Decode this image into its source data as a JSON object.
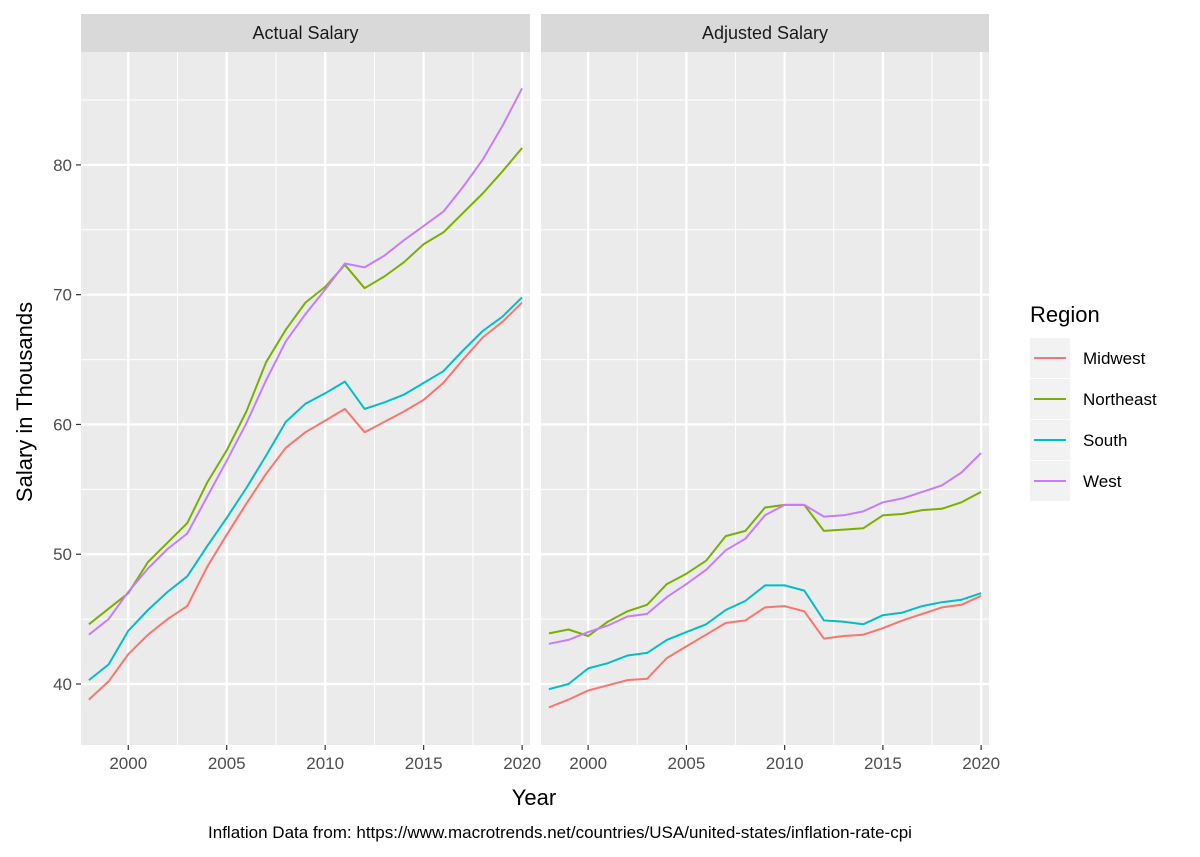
{
  "chart_data": {
    "type": "line",
    "xlabel": "Year",
    "ylabel": "Salary in Thousands",
    "caption": "Inflation Data from: https://www.macrotrends.net/countries/USA/united-states/inflation-rate-cpi",
    "xlim": [
      1997.6,
      2020.4
    ],
    "ylim": [
      35.3,
      88.7
    ],
    "x_ticks": [
      2000,
      2005,
      2010,
      2015,
      2020
    ],
    "y_ticks": [
      40,
      50,
      60,
      70,
      80
    ],
    "grid": true,
    "legend": {
      "title": "Region",
      "placement": "right",
      "entries": [
        {
          "name": "Midwest",
          "color": "#F8766D"
        },
        {
          "name": "Northeast",
          "color": "#7CAE00"
        },
        {
          "name": "South",
          "color": "#00BFC4"
        },
        {
          "name": "West",
          "color": "#C77CFF"
        }
      ]
    },
    "x": [
      1998,
      1999,
      2000,
      2001,
      2002,
      2003,
      2004,
      2005,
      2006,
      2007,
      2008,
      2009,
      2010,
      2011,
      2012,
      2013,
      2014,
      2015,
      2016,
      2017,
      2018,
      2019,
      2020
    ],
    "panels": [
      {
        "title": "Actual Salary",
        "series": [
          {
            "name": "Midwest",
            "values": [
              38.8,
              40.2,
              42.3,
              43.8,
              45.0,
              46.0,
              49.0,
              51.5,
              53.9,
              56.2,
              58.2,
              59.4,
              60.3,
              61.2,
              59.4,
              60.2,
              61.0,
              61.9,
              63.2,
              65.0,
              66.7,
              67.9,
              69.4
            ]
          },
          {
            "name": "Northeast",
            "values": [
              44.6,
              45.8,
              47.0,
              49.4,
              50.9,
              52.4,
              55.5,
              58.0,
              61.0,
              64.8,
              67.3,
              69.4,
              70.6,
              72.3,
              70.5,
              71.4,
              72.5,
              73.9,
              74.8,
              76.3,
              77.8,
              79.5,
              81.3
            ]
          },
          {
            "name": "South",
            "values": [
              40.3,
              41.5,
              44.1,
              45.7,
              47.1,
              48.3,
              50.6,
              52.8,
              55.1,
              57.6,
              60.2,
              61.6,
              62.4,
              63.3,
              61.2,
              61.7,
              62.3,
              63.2,
              64.1,
              65.7,
              67.2,
              68.3,
              69.8
            ]
          },
          {
            "name": "West",
            "values": [
              43.8,
              45.0,
              47.1,
              48.9,
              50.4,
              51.6,
              54.4,
              57.2,
              60.1,
              63.4,
              66.4,
              68.5,
              70.4,
              72.4,
              72.1,
              73.0,
              74.2,
              75.3,
              76.4,
              78.3,
              80.4,
              83.0,
              85.9
            ]
          }
        ]
      },
      {
        "title": "Adjusted Salary",
        "series": [
          {
            "name": "Midwest",
            "values": [
              38.2,
              38.8,
              39.5,
              39.9,
              40.3,
              40.4,
              42.0,
              42.9,
              43.8,
              44.7,
              44.9,
              45.9,
              46.0,
              45.6,
              43.5,
              43.7,
              43.8,
              44.3,
              44.9,
              45.4,
              45.9,
              46.1,
              46.8
            ]
          },
          {
            "name": "Northeast",
            "values": [
              43.9,
              44.2,
              43.7,
              44.8,
              45.6,
              46.1,
              47.7,
              48.5,
              49.5,
              51.4,
              51.8,
              53.6,
              53.8,
              53.8,
              51.8,
              51.9,
              52.0,
              53.0,
              53.1,
              53.4,
              53.5,
              54.0,
              54.8
            ]
          },
          {
            "name": "South",
            "values": [
              39.6,
              40.0,
              41.2,
              41.6,
              42.2,
              42.4,
              43.4,
              44.0,
              44.6,
              45.7,
              46.4,
              47.6,
              47.6,
              47.2,
              44.9,
              44.8,
              44.6,
              45.3,
              45.5,
              46.0,
              46.3,
              46.5,
              47.0
            ]
          },
          {
            "name": "West",
            "values": [
              43.1,
              43.4,
              44.0,
              44.5,
              45.2,
              45.4,
              46.7,
              47.7,
              48.8,
              50.3,
              51.2,
              53.0,
              53.8,
              53.8,
              52.9,
              53.0,
              53.3,
              54.0,
              54.3,
              54.8,
              55.3,
              56.3,
              57.8
            ]
          }
        ]
      }
    ]
  }
}
